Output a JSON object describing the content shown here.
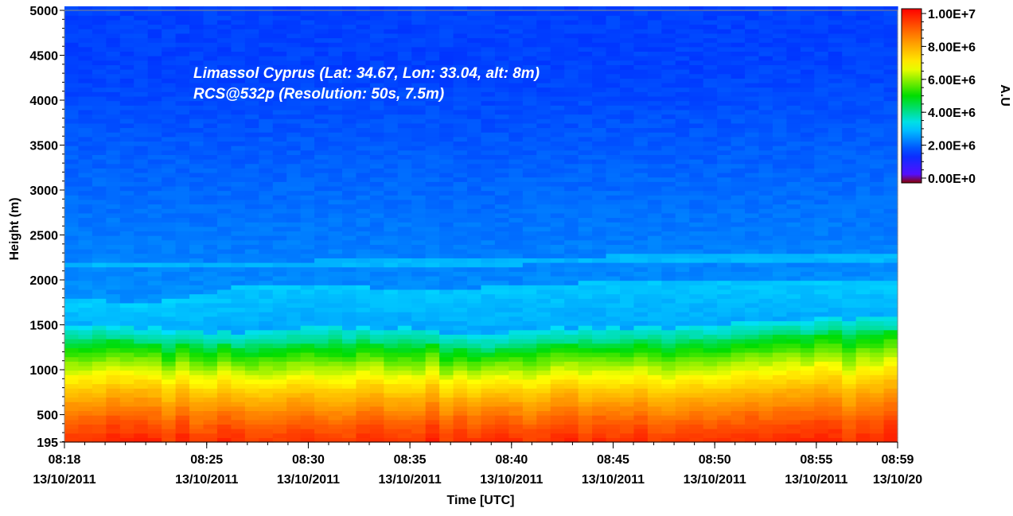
{
  "chart_data": {
    "type": "heatmap",
    "annotations": [
      "Limassol Cyprus (Lat: 34.67, Lon: 33.04, alt: 8m)",
      "RCS@532p (Resolution: 50s, 7.5m)"
    ],
    "xlabel": "Time [UTC]",
    "ylabel": "Height (m)",
    "colorbar_label": "A.U",
    "ylim": [
      195,
      5000
    ],
    "y_ticks": [
      "195",
      "500",
      "1000",
      "1500",
      "2000",
      "2500",
      "3000",
      "3500",
      "4000",
      "4500",
      "5000"
    ],
    "x_ticks": [
      {
        "time": "08:18",
        "date": "13/10/2011"
      },
      {
        "time": "08:25",
        "date": "13/10/2011"
      },
      {
        "time": "08:30",
        "date": "13/10/2011"
      },
      {
        "time": "08:35",
        "date": "13/10/2011"
      },
      {
        "time": "08:40",
        "date": "13/10/2011"
      },
      {
        "time": "08:45",
        "date": "13/10/2011"
      },
      {
        "time": "08:50",
        "date": "13/10/2011"
      },
      {
        "time": "08:55",
        "date": "13/10/2011"
      },
      {
        "time": "08:59",
        "date": "13/10/20"
      }
    ],
    "colorbar_ticks": [
      "1.00E+7",
      "8.00E+6",
      "6.00E+6",
      "4.00E+6",
      "2.00E+6",
      "0.00E+0"
    ],
    "colorbar_range": [
      0,
      10000000
    ],
    "colormap": [
      "#8b0000",
      "#7700ff",
      "#0033ff",
      "#00e0ff",
      "#00dd00",
      "#ffff00",
      "#ff8800",
      "#ff0000"
    ],
    "time_start_min": 498,
    "time_end_min": 539,
    "profile_anchor_times_min": [
      498,
      502,
      506,
      510,
      514,
      518,
      522,
      526,
      530,
      534,
      539
    ],
    "layer_top_m": [
      1350,
      1300,
      1260,
      1300,
      1320,
      1230,
      1300,
      1320,
      1350,
      1400,
      1420
    ],
    "residual_layer_m": [
      1800,
      1740,
      1920,
      1950,
      1900,
      1920,
      1960,
      2000,
      2020,
      2000,
      1980
    ],
    "upper_layer_m": [
      2170,
      2170,
      2160,
      2180,
      2200,
      2200,
      2220,
      2240,
      2250,
      2230,
      2240
    ]
  }
}
